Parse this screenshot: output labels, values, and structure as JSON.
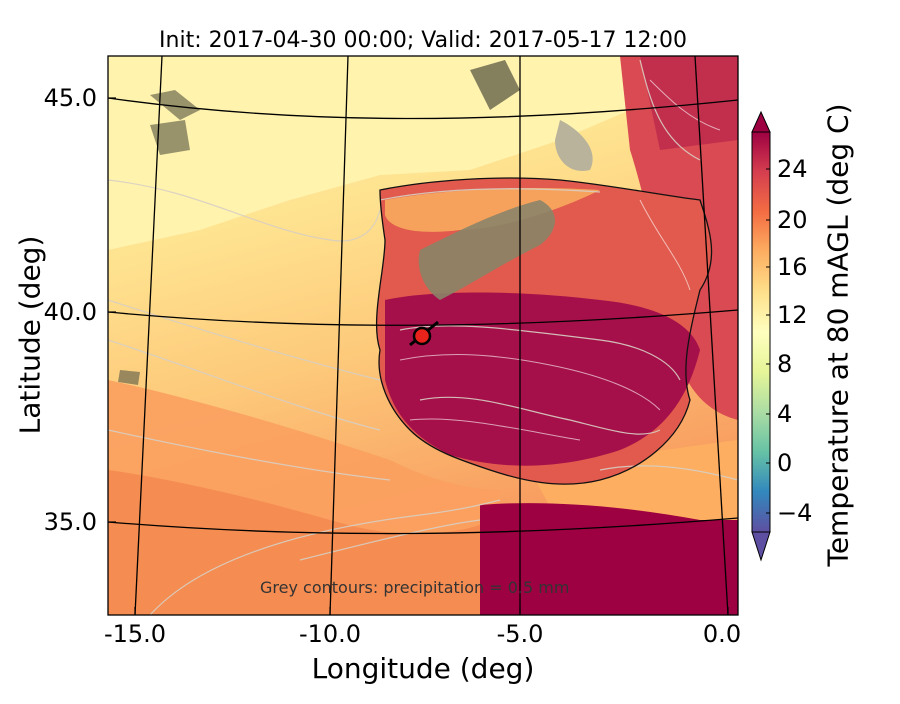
{
  "title": "Init: 2017-04-30 00:00; Valid: 2017-05-17 12:00",
  "xlabel": "Longitude (deg)",
  "ylabel": "Latitude (deg)",
  "colorbar_label": "Temperature at 80 mAGL (deg C)",
  "x_ticks": [
    "-15.0",
    "-10.0",
    "-5.0",
    "0.0"
  ],
  "y_ticks": [
    "45.0",
    "40.0",
    "35.0"
  ],
  "colorbar_ticks": [
    "24",
    "20",
    "16",
    "12",
    "8",
    "4",
    "0",
    "−4"
  ],
  "note": "Grey contours: precipitation = 0.5 mm",
  "marker_color": "#e8231b",
  "chart_data": {
    "type": "map",
    "title": "Init: 2017-04-30 00:00; Valid: 2017-05-17 12:00",
    "xlabel": "Longitude (deg)",
    "ylabel": "Latitude (deg)",
    "xlim": [
      -16,
      0.3
    ],
    "ylim": [
      32.7,
      46
    ],
    "colorbar": {
      "label": "Temperature at 80 mAGL (deg C)",
      "range": [
        -6,
        28
      ],
      "ticks": [
        24,
        20,
        16,
        12,
        8,
        4,
        0,
        -4
      ],
      "colormap": "Spectral_r"
    },
    "marker": {
      "lon": -7.7,
      "lat": 39.4
    }
  }
}
